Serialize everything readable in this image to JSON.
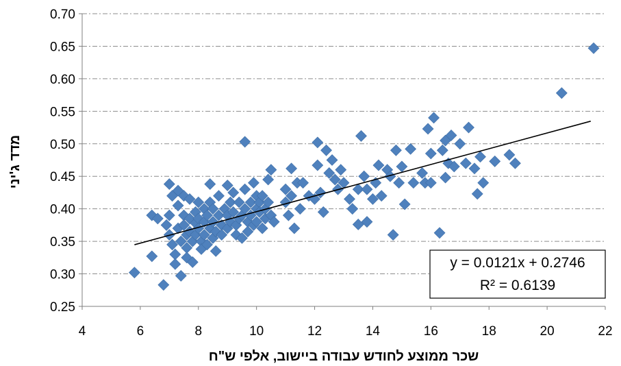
{
  "chart_data": {
    "type": "scatter",
    "title": "",
    "xlabel": "שכר ממוצע לחודש עבודה ביישוב, אלפי ש\"ח",
    "ylabel": "מדד ג'יני",
    "xlim": [
      4,
      22
    ],
    "ylim": [
      0.25,
      0.7
    ],
    "x_ticks": [
      "4",
      "6",
      "8",
      "10",
      "12",
      "14",
      "16",
      "18",
      "20",
      "22"
    ],
    "y_ticks": [
      "0.25",
      "0.30",
      "0.35",
      "0.40",
      "0.45",
      "0.50",
      "0.55",
      "0.60",
      "0.65",
      "0.70"
    ],
    "grid": "horizontal dash-dot",
    "marker_color": "#4F81BD",
    "trendline": {
      "slope": 0.0121,
      "intercept": 0.2746,
      "x_range": [
        5.8,
        21.5
      ],
      "equation": "y = 0.0121x + 0.2746",
      "r_squared": "R² = 0.6139",
      "box_position": "bottom-right"
    },
    "points": [
      [
        5.8,
        0.302
      ],
      [
        6.4,
        0.39
      ],
      [
        6.4,
        0.327
      ],
      [
        6.6,
        0.385
      ],
      [
        6.8,
        0.283
      ],
      [
        6.9,
        0.375
      ],
      [
        7.0,
        0.438
      ],
      [
        7.1,
        0.42
      ],
      [
        7.0,
        0.39
      ],
      [
        7.0,
        0.36
      ],
      [
        7.1,
        0.345
      ],
      [
        7.2,
        0.33
      ],
      [
        7.2,
        0.315
      ],
      [
        7.3,
        0.428
      ],
      [
        7.3,
        0.405
      ],
      [
        7.3,
        0.37
      ],
      [
        7.4,
        0.35
      ],
      [
        7.4,
        0.297
      ],
      [
        7.5,
        0.42
      ],
      [
        7.5,
        0.39
      ],
      [
        7.5,
        0.375
      ],
      [
        7.6,
        0.36
      ],
      [
        7.6,
        0.34
      ],
      [
        7.6,
        0.325
      ],
      [
        7.7,
        0.415
      ],
      [
        7.7,
        0.385
      ],
      [
        7.7,
        0.365
      ],
      [
        7.8,
        0.35
      ],
      [
        7.8,
        0.318
      ],
      [
        7.9,
        0.395
      ],
      [
        7.9,
        0.378
      ],
      [
        7.9,
        0.36
      ],
      [
        8.0,
        0.41
      ],
      [
        8.0,
        0.385
      ],
      [
        8.0,
        0.37
      ],
      [
        8.1,
        0.35
      ],
      [
        8.1,
        0.338
      ],
      [
        8.2,
        0.4
      ],
      [
        8.2,
        0.38
      ],
      [
        8.2,
        0.36
      ],
      [
        8.3,
        0.345
      ],
      [
        8.3,
        0.39
      ],
      [
        8.4,
        0.438
      ],
      [
        8.4,
        0.41
      ],
      [
        8.4,
        0.37
      ],
      [
        8.5,
        0.355
      ],
      [
        8.5,
        0.4
      ],
      [
        8.5,
        0.38
      ],
      [
        8.6,
        0.365
      ],
      [
        8.6,
        0.335
      ],
      [
        8.7,
        0.42
      ],
      [
        8.7,
        0.39
      ],
      [
        8.8,
        0.375
      ],
      [
        8.8,
        0.36
      ],
      [
        8.9,
        0.4
      ],
      [
        9.0,
        0.436
      ],
      [
        9.0,
        0.39
      ],
      [
        9.0,
        0.37
      ],
      [
        9.1,
        0.41
      ],
      [
        9.1,
        0.38
      ],
      [
        9.2,
        0.425
      ],
      [
        9.2,
        0.395
      ],
      [
        9.3,
        0.375
      ],
      [
        9.3,
        0.36
      ],
      [
        9.4,
        0.41
      ],
      [
        9.4,
        0.385
      ],
      [
        9.5,
        0.355
      ],
      [
        9.5,
        0.39
      ],
      [
        9.6,
        0.503
      ],
      [
        9.6,
        0.43
      ],
      [
        9.6,
        0.4
      ],
      [
        9.7,
        0.38
      ],
      [
        9.7,
        0.365
      ],
      [
        9.8,
        0.41
      ],
      [
        9.8,
        0.39
      ],
      [
        9.9,
        0.44
      ],
      [
        9.9,
        0.375
      ],
      [
        10.0,
        0.42
      ],
      [
        10.0,
        0.4
      ],
      [
        10.0,
        0.38
      ],
      [
        10.1,
        0.41
      ],
      [
        10.1,
        0.395
      ],
      [
        10.2,
        0.37
      ],
      [
        10.2,
        0.42
      ],
      [
        10.3,
        0.4
      ],
      [
        10.3,
        0.385
      ],
      [
        10.4,
        0.445
      ],
      [
        10.4,
        0.41
      ],
      [
        10.5,
        0.46
      ],
      [
        10.5,
        0.39
      ],
      [
        10.6,
        0.38
      ],
      [
        11.0,
        0.43
      ],
      [
        11.0,
        0.41
      ],
      [
        11.1,
        0.39
      ],
      [
        11.2,
        0.462
      ],
      [
        11.2,
        0.42
      ],
      [
        11.3,
        0.37
      ],
      [
        11.4,
        0.44
      ],
      [
        11.5,
        0.4
      ],
      [
        11.6,
        0.44
      ],
      [
        11.8,
        0.42
      ],
      [
        12.0,
        0.415
      ],
      [
        12.1,
        0.502
      ],
      [
        12.1,
        0.467
      ],
      [
        12.2,
        0.425
      ],
      [
        12.3,
        0.395
      ],
      [
        12.4,
        0.49
      ],
      [
        12.5,
        0.455
      ],
      [
        12.6,
        0.475
      ],
      [
        12.7,
        0.445
      ],
      [
        12.8,
        0.43
      ],
      [
        12.9,
        0.46
      ],
      [
        13.0,
        0.44
      ],
      [
        13.2,
        0.415
      ],
      [
        13.3,
        0.4
      ],
      [
        13.5,
        0.43
      ],
      [
        13.5,
        0.376
      ],
      [
        13.6,
        0.512
      ],
      [
        13.7,
        0.45
      ],
      [
        13.8,
        0.43
      ],
      [
        13.8,
        0.38
      ],
      [
        14.0,
        0.415
      ],
      [
        14.1,
        0.44
      ],
      [
        14.2,
        0.467
      ],
      [
        14.3,
        0.42
      ],
      [
        14.5,
        0.46
      ],
      [
        14.6,
        0.45
      ],
      [
        14.7,
        0.36
      ],
      [
        14.8,
        0.49
      ],
      [
        14.9,
        0.44
      ],
      [
        15.0,
        0.465
      ],
      [
        15.1,
        0.407
      ],
      [
        15.3,
        0.492
      ],
      [
        15.4,
        0.44
      ],
      [
        15.7,
        0.455
      ],
      [
        15.8,
        0.44
      ],
      [
        15.9,
        0.523
      ],
      [
        16.0,
        0.485
      ],
      [
        16.0,
        0.44
      ],
      [
        16.1,
        0.54
      ],
      [
        16.3,
        0.363
      ],
      [
        16.4,
        0.49
      ],
      [
        16.5,
        0.448
      ],
      [
        16.5,
        0.505
      ],
      [
        16.6,
        0.47
      ],
      [
        16.7,
        0.513
      ],
      [
        16.8,
        0.465
      ],
      [
        17.0,
        0.5
      ],
      [
        17.2,
        0.47
      ],
      [
        17.3,
        0.525
      ],
      [
        17.5,
        0.462
      ],
      [
        17.6,
        0.423
      ],
      [
        17.7,
        0.48
      ],
      [
        17.8,
        0.44
      ],
      [
        18.2,
        0.473
      ],
      [
        18.7,
        0.483
      ],
      [
        18.9,
        0.47
      ],
      [
        20.5,
        0.578
      ],
      [
        21.6,
        0.647
      ]
    ]
  }
}
